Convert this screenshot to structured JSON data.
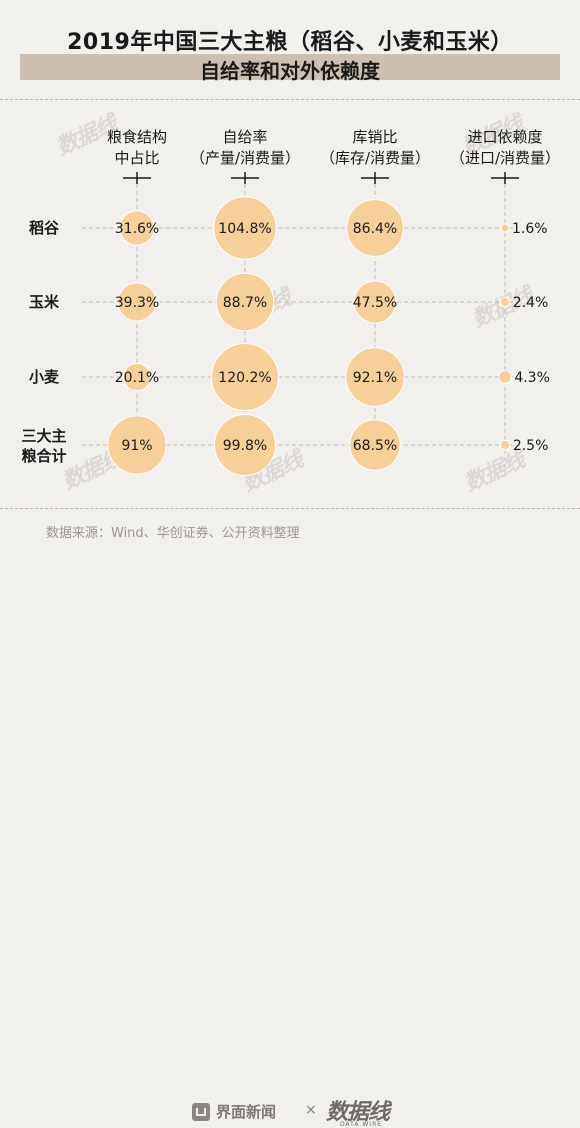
{
  "title": {
    "line1": "2019年中国三大主粮（稻谷、小麦和玉米）",
    "line2": "自给率和对外依赖度"
  },
  "colors": {
    "bubble_fill": "#f7cf99",
    "bubble_stroke": "#ffffff",
    "title_band": "#cdbfb1",
    "background": "#f2f0ed",
    "dash_line": "#c2bdb7"
  },
  "chart_data": {
    "type": "bubble-table",
    "columns": [
      {
        "line1": "粮食结构",
        "line2": "中占比"
      },
      {
        "line1": "自给率",
        "line2": "（产量/消费量）"
      },
      {
        "line1": "库销比",
        "line2": "（库存/消费量）"
      },
      {
        "line1": "进口依赖度",
        "line2": "（进口/消费量）"
      }
    ],
    "rows": [
      {
        "label_lines": [
          "稻谷"
        ],
        "values": [
          31.6,
          104.8,
          86.4,
          1.6
        ],
        "labels": [
          "31.6%",
          "104.8%",
          "86.4%",
          "1.6%"
        ]
      },
      {
        "label_lines": [
          "玉米"
        ],
        "values": [
          39.3,
          88.7,
          47.5,
          2.4
        ],
        "labels": [
          "39.3%",
          "88.7%",
          "47.5%",
          "2.4%"
        ]
      },
      {
        "label_lines": [
          "小麦"
        ],
        "values": [
          20.1,
          120.2,
          92.1,
          4.3
        ],
        "labels": [
          "20.1%",
          "120.2%",
          "92.1%",
          "4.3%"
        ]
      },
      {
        "label_lines": [
          "三大主",
          "粮合计"
        ],
        "values": [
          91,
          99.8,
          68.5,
          2.5
        ],
        "labels": [
          "91%",
          "99.8%",
          "68.5%",
          "2.5%"
        ]
      }
    ],
    "units": "%"
  },
  "source": "数据来源：Wind、华创证券、公开资料整理",
  "footer": {
    "brand": "界面新闻",
    "times": "×",
    "partner": "数据线",
    "partner_sub": "DATA WIRE"
  },
  "watermark": "数据线"
}
